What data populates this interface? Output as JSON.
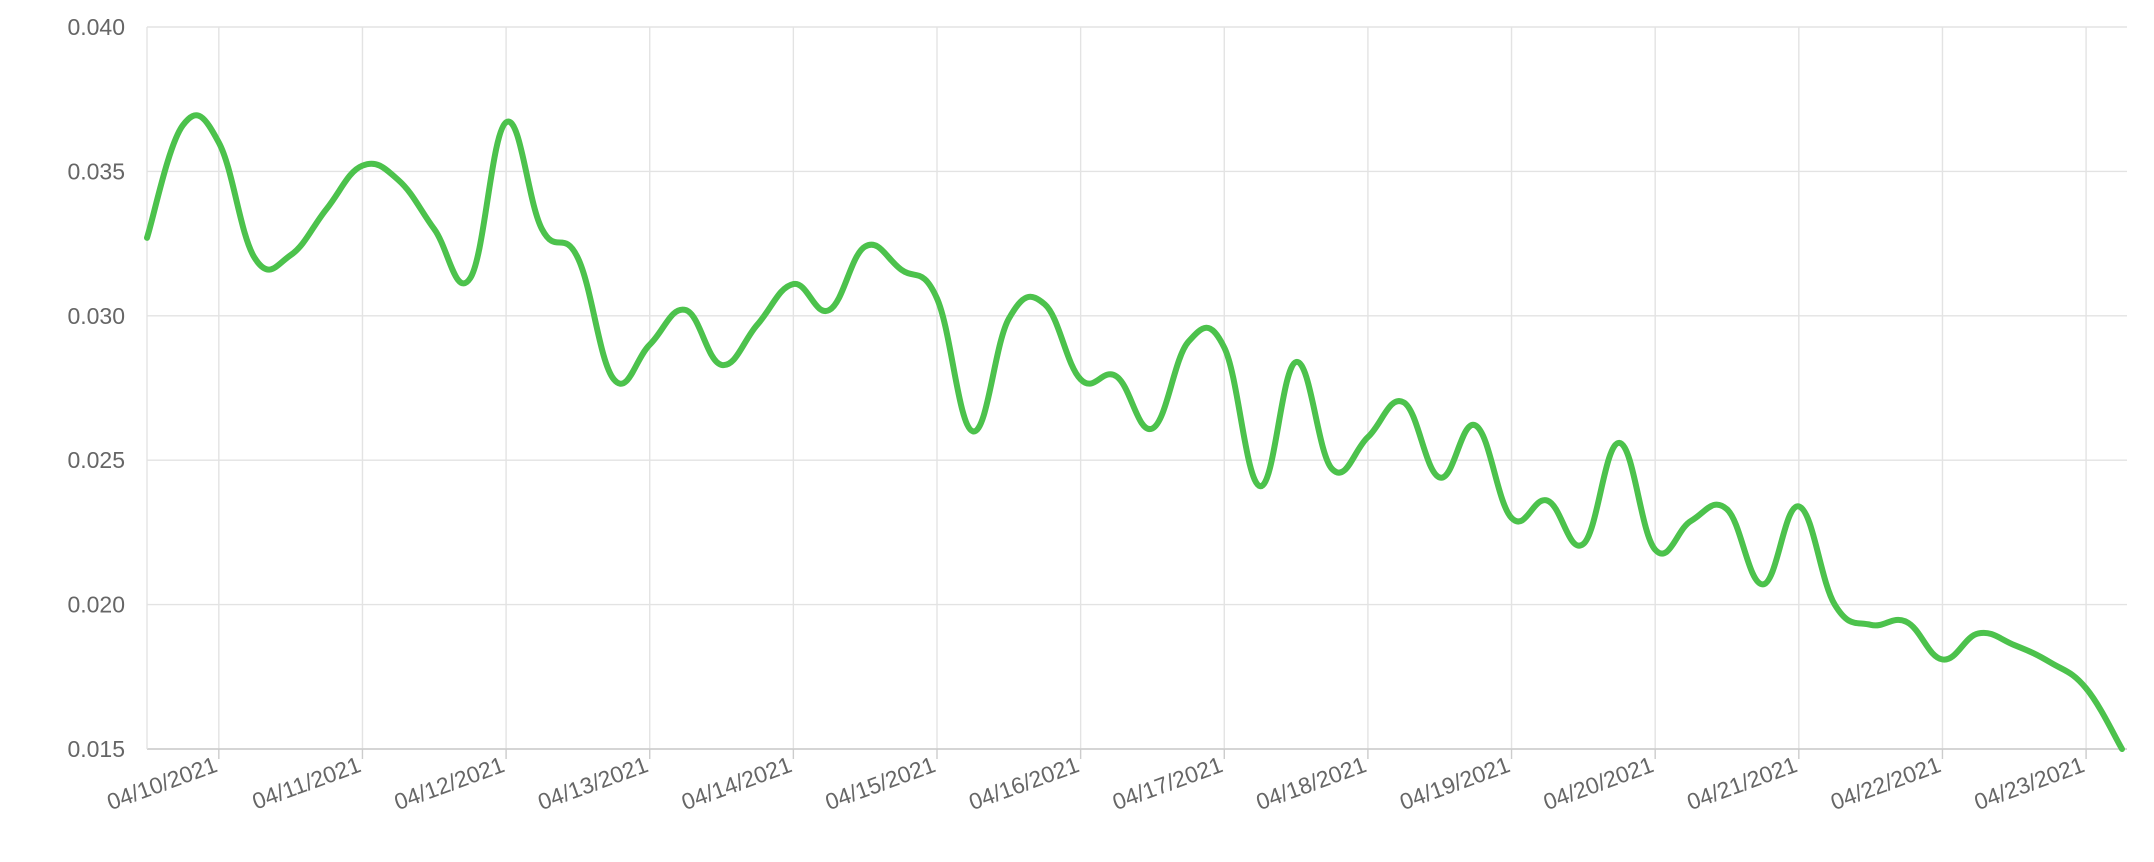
{
  "chart_data": {
    "type": "line",
    "categories": [
      null,
      null,
      "04/10/2021",
      null,
      null,
      null,
      "04/11/2021",
      null,
      null,
      null,
      "04/12/2021",
      null,
      null,
      null,
      "04/13/2021",
      null,
      null,
      null,
      "04/14/2021",
      null,
      null,
      null,
      "04/15/2021",
      null,
      null,
      null,
      "04/16/2021",
      null,
      null,
      null,
      "04/17/2021",
      null,
      null,
      null,
      "04/18/2021",
      null,
      null,
      null,
      "04/19/2021",
      null,
      null,
      null,
      "04/20/2021",
      null,
      null,
      null,
      "04/21/2021",
      null,
      null,
      null,
      "04/22/2021",
      null,
      null,
      null,
      "04/23/2021",
      null
    ],
    "series": [
      {
        "color": "#4cc24c",
        "values": [
          0.0327,
          0.0366,
          0.036,
          0.032,
          0.0321,
          0.0337,
          0.0352,
          0.0347,
          0.033,
          0.0313,
          0.0367,
          0.033,
          0.032,
          0.0278,
          0.029,
          0.0302,
          0.0283,
          0.0297,
          0.0311,
          0.0302,
          0.0324,
          0.0316,
          0.0306,
          0.026,
          0.0299,
          0.0304,
          0.0278,
          0.0279,
          0.0261,
          0.0291,
          0.0289,
          0.0241,
          0.0284,
          0.0247,
          0.0258,
          0.027,
          0.0244,
          0.0262,
          0.023,
          0.0236,
          0.0221,
          0.0256,
          0.0219,
          0.0229,
          0.0233,
          0.0207,
          0.0234,
          0.02,
          0.0193,
          0.0194,
          0.0181,
          0.019,
          0.0186,
          0.018,
          0.0171,
          0.015
        ]
      }
    ],
    "ylim": [
      0.015,
      0.04
    ],
    "yticks": [
      0.015,
      {
        "value": 0.02,
        "label": "0.020"
      },
      0.025,
      {
        "value": 0.03,
        "label": "0.030"
      },
      0.035,
      {
        "value": 0.04,
        "label": "0.040"
      }
    ],
    "grid": true
  }
}
